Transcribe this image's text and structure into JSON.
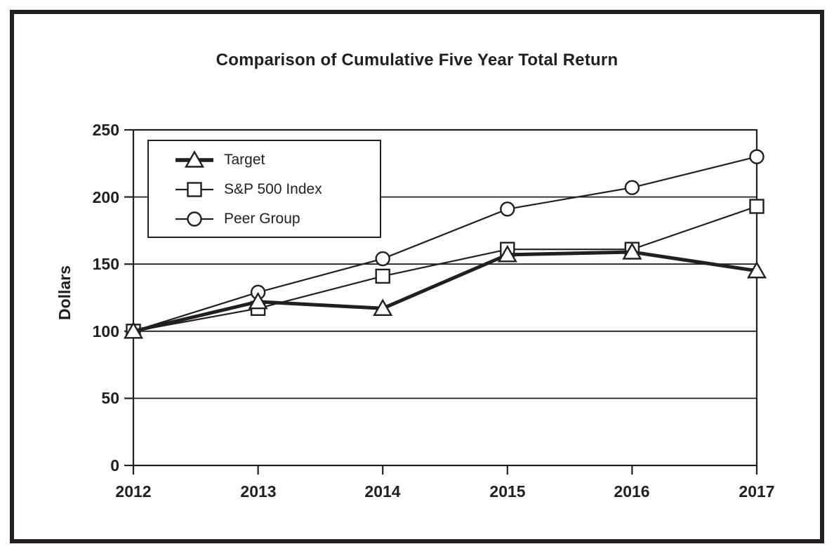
{
  "figure": {
    "background": "#ffffff",
    "border_color": "#231f20"
  },
  "chart_data": {
    "type": "line",
    "title": "Comparison of Cumulative Five Year Total Return",
    "xlabel": "",
    "ylabel": "Dollars",
    "categories": [
      "2012",
      "2013",
      "2014",
      "2015",
      "2016",
      "2017"
    ],
    "series": [
      {
        "name": "Target",
        "marker": "triangle",
        "thick": true,
        "values": [
          100,
          122,
          117,
          157,
          159,
          145
        ]
      },
      {
        "name": "S&P 500 Index",
        "marker": "square",
        "thick": false,
        "values": [
          100,
          117,
          141,
          161,
          161,
          193
        ]
      },
      {
        "name": "Peer Group",
        "marker": "circle",
        "thick": false,
        "values": [
          100,
          129,
          154,
          191,
          207,
          230
        ]
      }
    ],
    "ylim": [
      0,
      250
    ],
    "yticks": [
      0,
      50,
      100,
      150,
      200,
      250
    ],
    "grid": "horizontal",
    "legend_position": "top-left-inside",
    "line_color": "#231f20",
    "marker_fill": "#ffffff"
  }
}
